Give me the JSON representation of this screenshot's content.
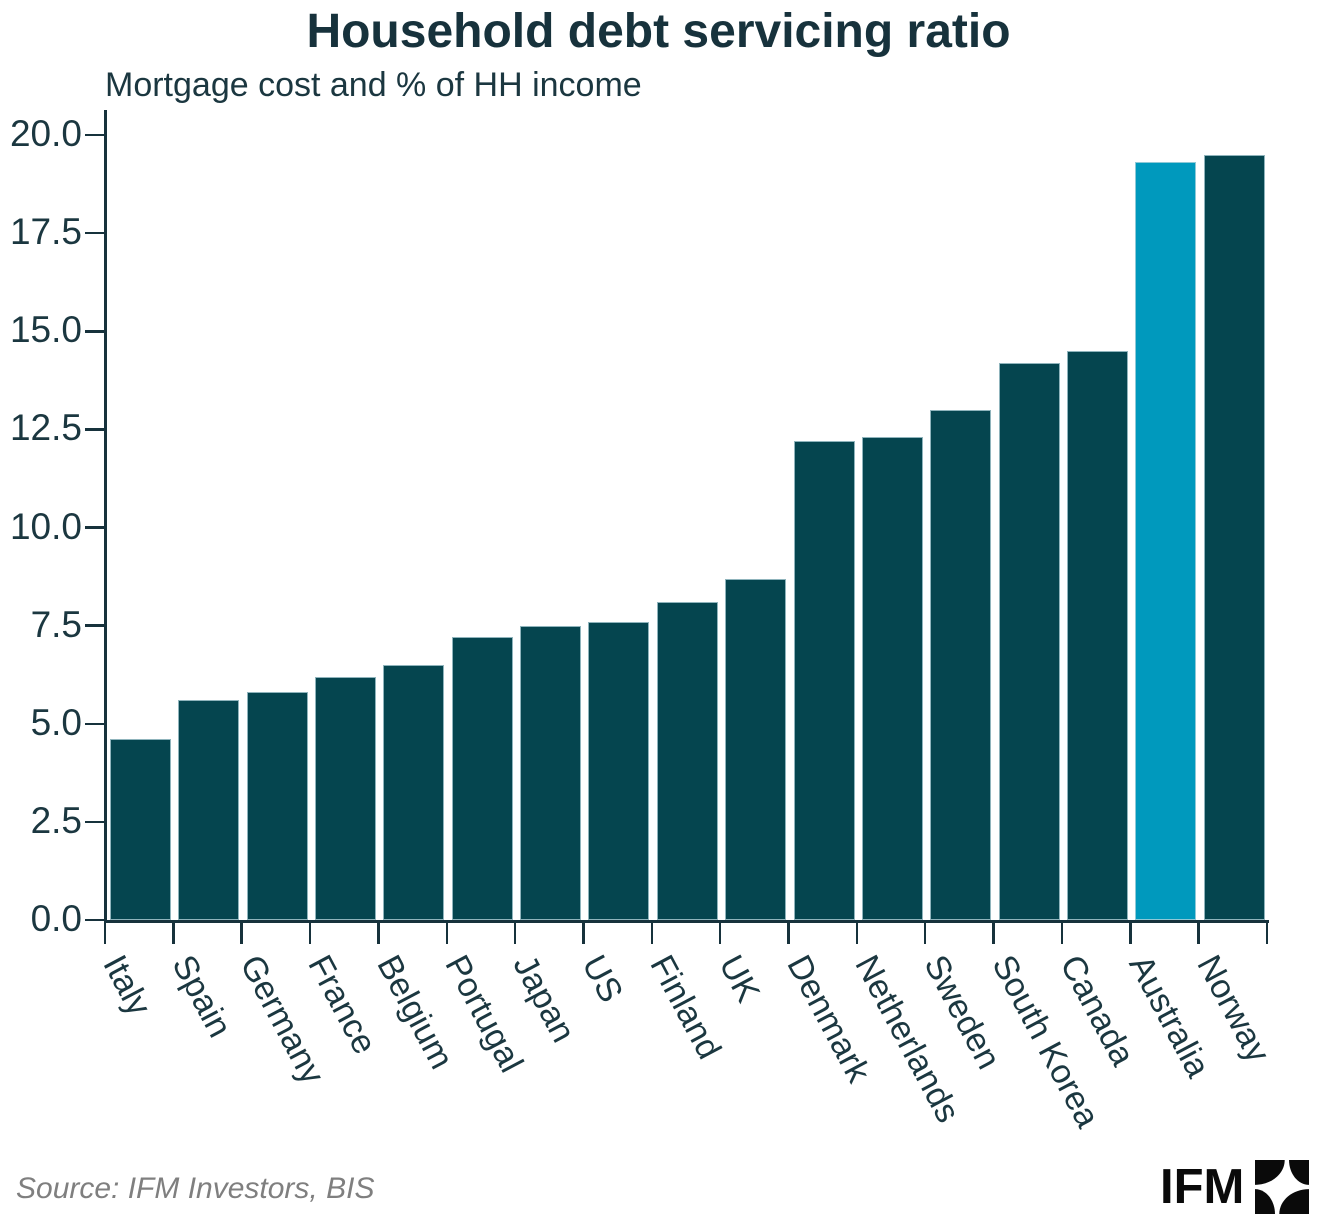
{
  "title": "Household debt servicing ratio",
  "subtitle": "Mortgage cost and % of HH income",
  "source": "Source: IFM Investors, BIS",
  "logo": {
    "text": "IFM"
  },
  "colors": {
    "bar": "#05454f",
    "highlight": "#0099bd",
    "ink": "#1b3740",
    "source_gray": "#7f7f7f",
    "logo_black": "#0a0a0a"
  },
  "chart_data": {
    "type": "bar",
    "title": "Household debt servicing ratio",
    "subtitle": "Mortgage cost and % of HH income",
    "categories": [
      "Italy",
      "Spain",
      "Germany",
      "France",
      "Belgium",
      "Portugal",
      "Japan",
      "US",
      "Finland",
      "UK",
      "Denmark",
      "Netherlands",
      "Sweden",
      "South Korea",
      "Canada",
      "Australia",
      "Norway"
    ],
    "values": [
      4.6,
      5.6,
      5.8,
      6.2,
      6.5,
      7.2,
      7.5,
      7.6,
      8.1,
      8.7,
      12.2,
      12.3,
      13.0,
      14.2,
      14.5,
      19.3,
      19.5
    ],
    "highlight_category": "Australia",
    "xlabel": "",
    "ylabel": "",
    "ylim": [
      0,
      20
    ],
    "yticks": [
      0.0,
      2.5,
      5.0,
      7.5,
      10.0,
      12.5,
      15.0,
      17.5,
      20.0
    ],
    "grid": false,
    "legend": null
  }
}
